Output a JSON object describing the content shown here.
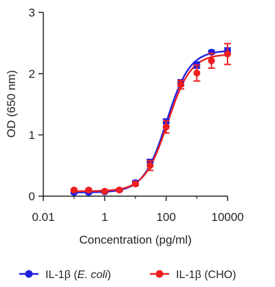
{
  "chart_data": {
    "type": "scatter",
    "xscale": "log10",
    "xlim": [
      0.01,
      10000
    ],
    "ylim": [
      0,
      3
    ],
    "xlabel": "Concentration (pg/ml)",
    "ylabel": "OD (650 nm)",
    "xticks": [
      0.01,
      1,
      100,
      10000
    ],
    "xtick_labels": [
      "0.01",
      "1",
      "100",
      "10000"
    ],
    "yticks": [
      0,
      1,
      2,
      3
    ],
    "ytick_labels": [
      "0",
      "1",
      "2",
      "3"
    ],
    "grid": false,
    "legend_position": "bottom",
    "series": [
      {
        "name_parts": [
          {
            "text": "IL-1β (",
            "italic": false
          },
          {
            "text": "E. coli",
            "italic": true
          },
          {
            "text": ")",
            "italic": false
          }
        ],
        "color": "#1f1fe0",
        "x": [
          0.1,
          0.3,
          1,
          3,
          10,
          30,
          100,
          300,
          1000,
          3000,
          10000
        ],
        "y": [
          0.06,
          0.06,
          0.07,
          0.1,
          0.22,
          0.55,
          1.2,
          1.85,
          2.14,
          2.35,
          2.38
        ],
        "err": [
          0.02,
          0.02,
          0.02,
          0.02,
          0.03,
          0.05,
          0.06,
          0.05,
          0.05,
          0.03,
          0.04
        ]
      },
      {
        "name_parts": [
          {
            "text": "IL-1β (CHO)",
            "italic": false
          }
        ],
        "color": "#ee1f1f",
        "x": [
          0.1,
          0.3,
          1,
          3,
          10,
          30,
          100,
          300,
          1000,
          3000,
          10000
        ],
        "y": [
          0.1,
          0.1,
          0.08,
          0.1,
          0.2,
          0.5,
          1.13,
          1.82,
          2.01,
          2.21,
          2.32
        ],
        "err": [
          0.02,
          0.02,
          0.02,
          0.02,
          0.03,
          0.08,
          0.1,
          0.07,
          0.13,
          0.12,
          0.17
        ]
      }
    ]
  }
}
